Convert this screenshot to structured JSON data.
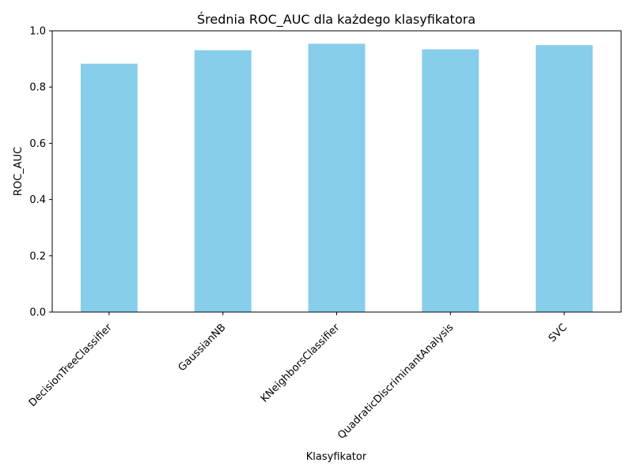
{
  "chart_data": {
    "type": "bar",
    "title": "Średnia ROC_AUC dla każdego klasyfikatora",
    "xlabel": "Klasyfikator",
    "ylabel": "ROC_AUC",
    "categories": [
      "DecisionTreeClassifier",
      "GaussianNB",
      "KNeighborsClassifier",
      "QuadraticDiscriminantAnalysis",
      "SVC"
    ],
    "values": [
      0.883,
      0.931,
      0.954,
      0.934,
      0.949
    ],
    "ylim": [
      0.0,
      1.0
    ],
    "yticks": [
      0.0,
      0.2,
      0.4,
      0.6,
      0.8,
      1.0
    ],
    "ytick_labels": [
      "0.0",
      "0.2",
      "0.4",
      "0.6",
      "0.8",
      "1.0"
    ],
    "x_tick_rotation_deg": 45,
    "bar_color": "#87ceeb",
    "grid": false,
    "legend": false
  }
}
